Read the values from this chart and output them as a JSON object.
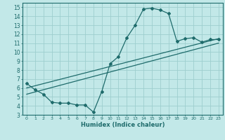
{
  "title": "",
  "xlabel": "Humidex (Indice chaleur)",
  "bg_color": "#c2e8e8",
  "grid_color": "#9ecece",
  "line_color": "#1e6b6b",
  "xlim": [
    -0.5,
    23.5
  ],
  "ylim": [
    3,
    15.5
  ],
  "xticks": [
    0,
    1,
    2,
    3,
    4,
    5,
    6,
    7,
    8,
    9,
    10,
    11,
    12,
    13,
    14,
    15,
    16,
    17,
    18,
    19,
    20,
    21,
    22,
    23
  ],
  "yticks": [
    3,
    4,
    5,
    6,
    7,
    8,
    9,
    10,
    11,
    12,
    13,
    14,
    15
  ],
  "line1_x": [
    0,
    1,
    2,
    3,
    4,
    5,
    6,
    7,
    8,
    9,
    10,
    11,
    12,
    13,
    14,
    15,
    16,
    17,
    18,
    19,
    20,
    21,
    22,
    23
  ],
  "line1_y": [
    6.5,
    5.8,
    5.3,
    4.4,
    4.3,
    4.3,
    4.1,
    4.1,
    3.3,
    5.6,
    8.7,
    9.5,
    11.6,
    13.0,
    14.8,
    14.9,
    14.7,
    14.3,
    11.2,
    11.5,
    11.6,
    11.1,
    11.4,
    11.4
  ],
  "line2_x": [
    0,
    23
  ],
  "line2_y": [
    6.0,
    11.5
  ],
  "line3_x": [
    0,
    23
  ],
  "line3_y": [
    5.3,
    11.0
  ]
}
